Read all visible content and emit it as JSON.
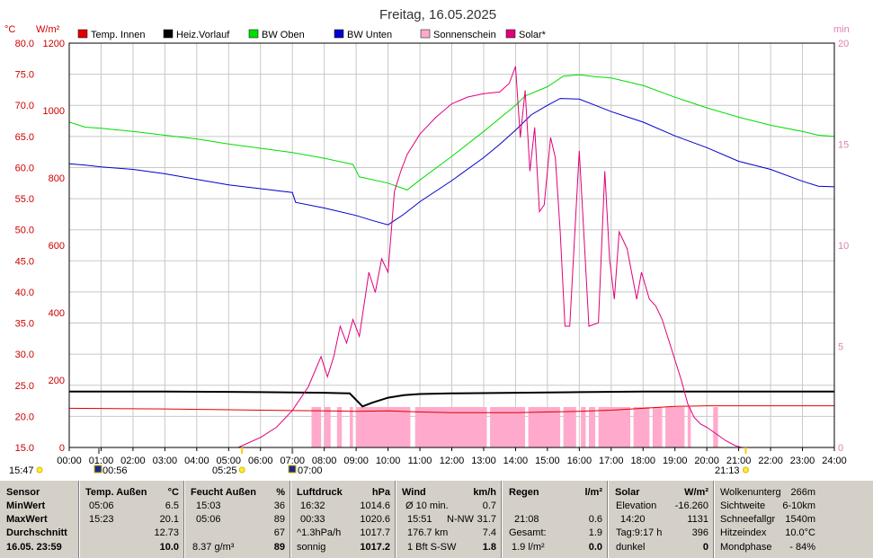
{
  "title": "Freitag, 16.05.2025",
  "axis_units": {
    "left_temp": "°C",
    "left_solar": "W/m²",
    "right": "min"
  },
  "legend": [
    {
      "label": "Temp. Innen",
      "color": "#e00000"
    },
    {
      "label": "Heiz.Vorlauf",
      "color": "#000000"
    },
    {
      "label": "BW Oben",
      "color": "#00dd00"
    },
    {
      "label": "BW Unten",
      "color": "#0000cc"
    },
    {
      "label": "Sonnenschein",
      "color": "#ffaacc"
    },
    {
      "label": "Solar*",
      "color": "#e0007a"
    }
  ],
  "sun_times": {
    "sunrise": "05:25",
    "sunset": "21:13",
    "moon_a": "00:56",
    "moon_b": "07:00",
    "left_mark": "15:47"
  },
  "chart_data": {
    "type": "line",
    "title": "Freitag, 16.05.2025",
    "x_labels": [
      "00:00",
      "01:00",
      "02:00",
      "03:00",
      "04:00",
      "05:00",
      "06:00",
      "07:00",
      "08:00",
      "09:00",
      "10:00",
      "11:00",
      "12:00",
      "13:00",
      "14:00",
      "15:00",
      "16:00",
      "17:00",
      "18:00",
      "19:00",
      "20:00",
      "21:00",
      "22:00",
      "23:00",
      "24:00"
    ],
    "xlim": [
      0,
      24
    ],
    "y_temp": {
      "unit": "°C",
      "ylim": [
        15,
        80
      ],
      "ticks": [
        "80.0",
        "75.0",
        "70.0",
        "65.0",
        "60.0",
        "55.0",
        "50.0",
        "45.0",
        "40.0",
        "35.0",
        "30.0",
        "25.0",
        "20.0",
        "15.0"
      ]
    },
    "y_solar": {
      "unit": "W/m²",
      "ylim": [
        0,
        1200
      ],
      "ticks": [
        "1200",
        "1000",
        "800",
        "600",
        "400",
        "200",
        "0"
      ]
    },
    "y_min": {
      "unit": "min",
      "ylim": [
        0,
        20
      ],
      "ticks": [
        "20",
        "15",
        "10",
        "5",
        "0"
      ]
    },
    "grid": true,
    "legend_position": "top",
    "series": [
      {
        "name": "Temp. Innen",
        "axis": "temp",
        "color": "#e00000",
        "points": [
          [
            0,
            21.3
          ],
          [
            3,
            21.2
          ],
          [
            6,
            21.0
          ],
          [
            8,
            20.9
          ],
          [
            9,
            20.8
          ],
          [
            10,
            20.9
          ],
          [
            11,
            20.7
          ],
          [
            12,
            20.6
          ],
          [
            14,
            20.6
          ],
          [
            15,
            20.7
          ],
          [
            16,
            20.8
          ],
          [
            17,
            21.0
          ],
          [
            18,
            21.3
          ],
          [
            19,
            21.6
          ],
          [
            20,
            21.7
          ],
          [
            22,
            21.7
          ],
          [
            24,
            21.7
          ]
        ]
      },
      {
        "name": "Heiz.Vorlauf",
        "axis": "temp",
        "color": "#000000",
        "points": [
          [
            0,
            24.0
          ],
          [
            3,
            24.0
          ],
          [
            6,
            23.9
          ],
          [
            8,
            23.8
          ],
          [
            8.8,
            23.7
          ],
          [
            9.2,
            21.6
          ],
          [
            9.5,
            22.2
          ],
          [
            10,
            23.0
          ],
          [
            10.5,
            23.4
          ],
          [
            11,
            23.6
          ],
          [
            12,
            23.7
          ],
          [
            14,
            23.8
          ],
          [
            16,
            23.9
          ],
          [
            18,
            24.0
          ],
          [
            20,
            24.0
          ],
          [
            24,
            24.0
          ]
        ]
      },
      {
        "name": "BW Oben",
        "axis": "temp",
        "color": "#00dd00",
        "points": [
          [
            0,
            67.3
          ],
          [
            0.5,
            66.5
          ],
          [
            1,
            66.3
          ],
          [
            2,
            65.8
          ],
          [
            3,
            65.2
          ],
          [
            4,
            64.6
          ],
          [
            5,
            63.8
          ],
          [
            6,
            63.1
          ],
          [
            7,
            62.4
          ],
          [
            8,
            61.5
          ],
          [
            8.9,
            60.5
          ],
          [
            9.1,
            58.5
          ],
          [
            10,
            57.5
          ],
          [
            10.6,
            56.4
          ],
          [
            11,
            58.0
          ],
          [
            12,
            61.8
          ],
          [
            13,
            65.8
          ],
          [
            14,
            70.0
          ],
          [
            14.3,
            71.5
          ],
          [
            15,
            73.0
          ],
          [
            15.5,
            74.7
          ],
          [
            16,
            74.9
          ],
          [
            16.5,
            74.6
          ],
          [
            17,
            74.4
          ],
          [
            18,
            73.2
          ],
          [
            19,
            71.3
          ],
          [
            20,
            69.6
          ],
          [
            21,
            68.1
          ],
          [
            22,
            66.8
          ],
          [
            23,
            65.8
          ],
          [
            23.5,
            65.2
          ],
          [
            24,
            65.0
          ]
        ]
      },
      {
        "name": "BW Unten",
        "axis": "temp",
        "color": "#0000cc",
        "points": [
          [
            0,
            60.6
          ],
          [
            0.5,
            60.4
          ],
          [
            1,
            60.1
          ],
          [
            2,
            59.7
          ],
          [
            3,
            59.0
          ],
          [
            4,
            58.1
          ],
          [
            5,
            57.2
          ],
          [
            6,
            56.6
          ],
          [
            7,
            56.0
          ],
          [
            7.1,
            54.4
          ],
          [
            8,
            53.5
          ],
          [
            9,
            52.3
          ],
          [
            9.5,
            51.5
          ],
          [
            10,
            50.8
          ],
          [
            10.5,
            52.5
          ],
          [
            11,
            54.5
          ],
          [
            12,
            57.9
          ],
          [
            13,
            61.6
          ],
          [
            13.5,
            63.7
          ],
          [
            14,
            66.0
          ],
          [
            14.5,
            68.5
          ],
          [
            15,
            70.0
          ],
          [
            15.4,
            71.1
          ],
          [
            16,
            71.0
          ],
          [
            16.5,
            70.0
          ],
          [
            17,
            69.0
          ],
          [
            18,
            67.3
          ],
          [
            19,
            65.1
          ],
          [
            20,
            63.2
          ],
          [
            21,
            61.0
          ],
          [
            22,
            59.7
          ],
          [
            23,
            57.8
          ],
          [
            23.5,
            57.0
          ],
          [
            24,
            56.9
          ]
        ]
      },
      {
        "name": "Solar*",
        "axis": "solar",
        "color": "#e0007a",
        "points": [
          [
            5.3,
            0
          ],
          [
            6,
            30
          ],
          [
            6.5,
            60
          ],
          [
            7,
            110
          ],
          [
            7.5,
            180
          ],
          [
            7.9,
            270
          ],
          [
            8.1,
            210
          ],
          [
            8.3,
            270
          ],
          [
            8.5,
            360
          ],
          [
            8.7,
            310
          ],
          [
            8.9,
            380
          ],
          [
            9.1,
            330
          ],
          [
            9.4,
            520
          ],
          [
            9.6,
            460
          ],
          [
            9.8,
            560
          ],
          [
            10,
            520
          ],
          [
            10.2,
            760
          ],
          [
            10.4,
            820
          ],
          [
            10.6,
            870
          ],
          [
            11,
            930
          ],
          [
            11.5,
            980
          ],
          [
            12,
            1020
          ],
          [
            12.5,
            1040
          ],
          [
            13,
            1050
          ],
          [
            13.5,
            1055
          ],
          [
            13.8,
            1080
          ],
          [
            14,
            1131
          ],
          [
            14.15,
            920
          ],
          [
            14.3,
            1060
          ],
          [
            14.45,
            820
          ],
          [
            14.6,
            950
          ],
          [
            14.75,
            700
          ],
          [
            14.9,
            720
          ],
          [
            15.1,
            920
          ],
          [
            15.25,
            860
          ],
          [
            15.4,
            640
          ],
          [
            15.55,
            360
          ],
          [
            15.7,
            360
          ],
          [
            16,
            880
          ],
          [
            16.15,
            620
          ],
          [
            16.3,
            360
          ],
          [
            16.6,
            370
          ],
          [
            16.8,
            820
          ],
          [
            16.95,
            560
          ],
          [
            17.1,
            440
          ],
          [
            17.25,
            640
          ],
          [
            17.5,
            590
          ],
          [
            17.8,
            440
          ],
          [
            17.95,
            520
          ],
          [
            18.2,
            440
          ],
          [
            18.4,
            420
          ],
          [
            18.6,
            380
          ],
          [
            18.8,
            320
          ],
          [
            19.0,
            260
          ],
          [
            19.2,
            200
          ],
          [
            19.4,
            130
          ],
          [
            19.6,
            90
          ],
          [
            19.8,
            70
          ],
          [
            20.0,
            60
          ],
          [
            20.3,
            40
          ],
          [
            20.6,
            20
          ],
          [
            20.9,
            5
          ],
          [
            21.1,
            0
          ]
        ]
      },
      {
        "name": "Sonnenschein",
        "axis": "min",
        "color": "#ffaacc",
        "kind": "bars",
        "ranges": [
          [
            7.6,
            7.9
          ],
          [
            8,
            8.2
          ],
          [
            8.4,
            8.55
          ],
          [
            8.8,
            8.9
          ],
          [
            9.0,
            10.7
          ],
          [
            10.85,
            13.1
          ],
          [
            13.2,
            14.3
          ],
          [
            14.4,
            15.4
          ],
          [
            15.5,
            15.9
          ],
          [
            16.05,
            16.2
          ],
          [
            16.3,
            16.5
          ],
          [
            16.6,
            17.6
          ],
          [
            17.7,
            18.2
          ],
          [
            18.3,
            18.6
          ],
          [
            18.7,
            19.3
          ],
          [
            19.4,
            19.5
          ],
          [
            20.2,
            20.35
          ]
        ],
        "value": 2.0
      }
    ]
  },
  "stats": {
    "header": {
      "sensor": "Sensor",
      "temp": "Temp. Außen",
      "temp_unit": "°C",
      "feucht": "Feucht Außen",
      "feucht_unit": "%",
      "luft": "Luftdruck",
      "luft_unit": "hPa",
      "wind": "Wind",
      "wind_unit": "km/h",
      "regen": "Regen",
      "regen_unit": "l/m²",
      "solar": "Solar",
      "solar_unit": "W/m²"
    },
    "rows": {
      "min": "MinWert",
      "max": "MaxWert",
      "avg": "Durchschnitt",
      "now": "16.05. 23:59"
    },
    "temp": {
      "min_t": "05:06",
      "min_v": "6.5",
      "max_t": "15:23",
      "max_v": "20.1",
      "avg_v": "12.73",
      "now_v": "10.0"
    },
    "feucht": {
      "min_t": "15:03",
      "min_v": "36",
      "max_t": "05:06",
      "max_v": "89",
      "avg_v": "67",
      "now_l": "8.37 g/m³",
      "now_v": "89"
    },
    "luft": {
      "min_t": "16:32",
      "min_v": "1014.6",
      "max_t": "00:33",
      "max_v": "1020.6",
      "avg_l": "^1.3hPa/h",
      "avg_v": "1017.7",
      "now_l": "sonnig",
      "now_v": "1017.2"
    },
    "wind": {
      "r1_l": "Ø 10 min.",
      "r1_v": "0.7",
      "r2_t": "15:51",
      "r2_d": "N-NW",
      "r2_v": "31.7",
      "r3_l": "176.7 km",
      "r3_v": "7.4",
      "r4_l": "1 Bft S-SW",
      "r4_v": "1.8"
    },
    "regen": {
      "r2_t": "21:08",
      "r2_v": "0.6",
      "r3_l": "Gesamt:",
      "r3_v": "1.9",
      "r4_l": "1.9 l/m²",
      "r4_v": "0.0"
    },
    "solar": {
      "r1_l": "Elevation",
      "r1_v": "-16.260",
      "r2_t": "14:20",
      "r2_v": "1131",
      "r3_l": "Tag:9:17 h",
      "r3_v": "396",
      "r4_l": "dunkel",
      "r4_v": "0"
    },
    "extra": [
      {
        "label": "Wolkenunterg",
        "value": "266m"
      },
      {
        "label": "Sichtweite",
        "value": "6-10km"
      },
      {
        "label": "Schneefallgr",
        "value": "1540m"
      },
      {
        "label": "Hitzeindex",
        "value": "10.0°C"
      },
      {
        "label": "Mondphase",
        "value": "- 84%"
      }
    ]
  }
}
